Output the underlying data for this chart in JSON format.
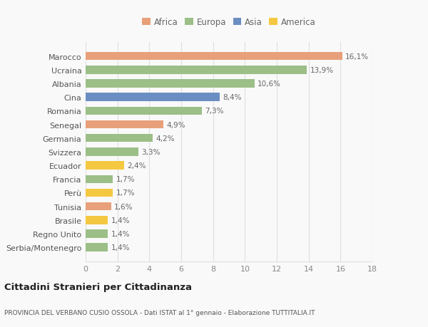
{
  "categories": [
    "Serbia/Montenegro",
    "Regno Unito",
    "Brasile",
    "Tunisia",
    "Perù",
    "Francia",
    "Ecuador",
    "Svizzera",
    "Germania",
    "Senegal",
    "Romania",
    "Cina",
    "Albania",
    "Ucraina",
    "Marocco"
  ],
  "values": [
    1.4,
    1.4,
    1.4,
    1.6,
    1.7,
    1.7,
    2.4,
    3.3,
    4.2,
    4.9,
    7.3,
    8.4,
    10.6,
    13.9,
    16.1
  ],
  "labels": [
    "1,4%",
    "1,4%",
    "1,4%",
    "1,6%",
    "1,7%",
    "1,7%",
    "2,4%",
    "3,3%",
    "4,2%",
    "4,9%",
    "7,3%",
    "8,4%",
    "10,6%",
    "13,9%",
    "16,1%"
  ],
  "colors": [
    "#9bbf87",
    "#9bbf87",
    "#f5c842",
    "#e8a07a",
    "#f5c842",
    "#9bbf87",
    "#f5c842",
    "#9bbf87",
    "#9bbf87",
    "#e8a07a",
    "#9bbf87",
    "#6b8ec2",
    "#9bbf87",
    "#9bbf87",
    "#e8a07a"
  ],
  "legend_labels": [
    "Africa",
    "Europa",
    "Asia",
    "America"
  ],
  "legend_colors": [
    "#e8a07a",
    "#9bbf87",
    "#6b8ec2",
    "#f5c842"
  ],
  "title": "Cittadini Stranieri per Cittadinanza",
  "subtitle": "PROVINCIA DEL VERBANO CUSIO OSSOLA - Dati ISTAT al 1° gennaio - Elaborazione TUTTITALIA.IT",
  "xlim": [
    0,
    18
  ],
  "xticks": [
    0,
    2,
    4,
    6,
    8,
    10,
    12,
    14,
    16,
    18
  ],
  "bg_color": "#f9f9f9",
  "grid_color": "#e0e0e0",
  "bar_height": 0.6,
  "label_fontsize": 7.5,
  "tick_fontsize": 8,
  "legend_fontsize": 8.5
}
